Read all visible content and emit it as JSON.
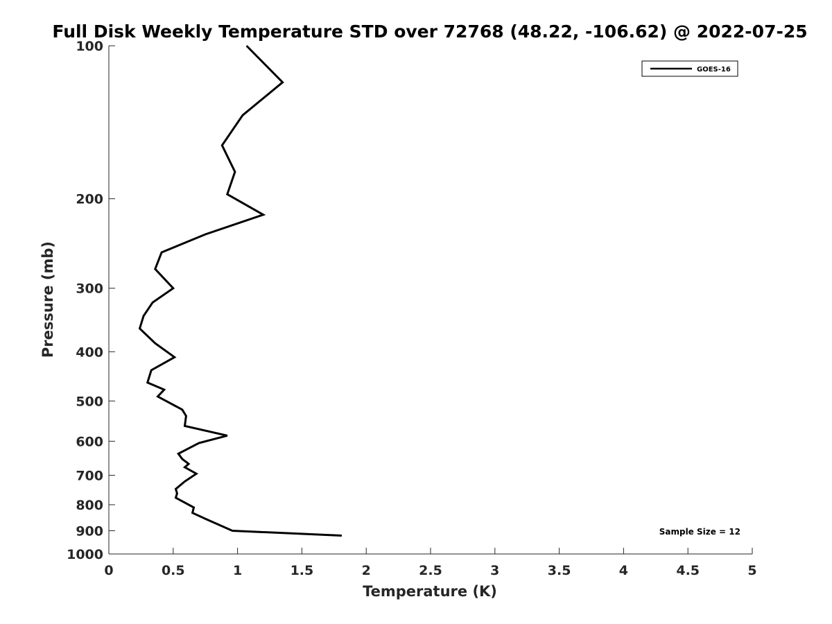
{
  "chart_data": {
    "type": "line",
    "title": "Full Disk Weekly Temperature STD over 72768 (48.22, -106.62) @ 2022-07-25",
    "xlabel": "Temperature (K)",
    "ylabel": "Pressure (mb)",
    "xlim": [
      0,
      5
    ],
    "ylim": [
      100,
      1000
    ],
    "y_scale": "log",
    "y_reversed": true,
    "grid": false,
    "legend_position": "top-right",
    "x_ticks": [
      "0",
      "0.5",
      "1",
      "1.5",
      "2",
      "2.5",
      "3",
      "3.5",
      "4",
      "4.5",
      "5"
    ],
    "y_ticks": [
      "100",
      "200",
      "300",
      "400",
      "500",
      "600",
      "700",
      "800",
      "900",
      "1000"
    ],
    "annotation": "Sample Size = 12",
    "series": [
      {
        "name": "GOES-16",
        "color": "#000000",
        "x": [
          1.07,
          1.35,
          1.04,
          0.88,
          0.98,
          0.92,
          1.2,
          0.75,
          0.41,
          0.36,
          0.5,
          0.34,
          0.27,
          0.24,
          0.36,
          0.51,
          0.33,
          0.3,
          0.43,
          0.38,
          0.57,
          0.6,
          0.59,
          0.92,
          0.7,
          0.54,
          0.57,
          0.62,
          0.59,
          0.68,
          0.59,
          0.52,
          0.53,
          0.52,
          0.66,
          0.65,
          0.76,
          0.96,
          1.81
        ],
        "y": [
          100,
          118,
          137,
          157,
          177,
          196,
          215,
          235,
          255,
          275,
          300,
          320,
          340,
          360,
          385,
          410,
          435,
          460,
          475,
          490,
          520,
          535,
          560,
          585,
          605,
          635,
          650,
          665,
          675,
          695,
          720,
          745,
          760,
          775,
          810,
          830,
          855,
          900,
          920
        ]
      }
    ]
  }
}
